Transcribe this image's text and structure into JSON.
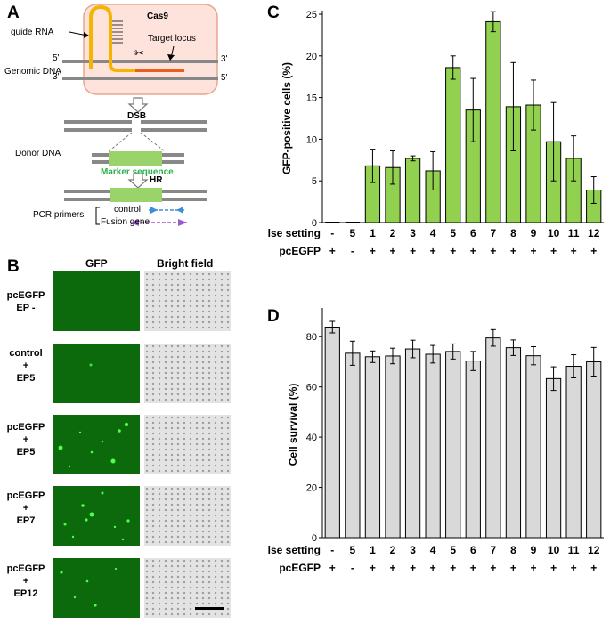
{
  "panel_letters": {
    "a": "A",
    "b": "B",
    "c": "C",
    "d": "D"
  },
  "panel_a": {
    "cas9": "Cas9",
    "guide_rna": "guide RNA",
    "target_locus": "Target locus",
    "genomic_dna": "Genomic DNA",
    "five_prime": "5'",
    "three_prime": "3'",
    "dsb": "DSB",
    "donor_dna": "Donor DNA",
    "marker_sequence": "Marker sequence",
    "hr": "HR",
    "pcr_primers": "PCR primers",
    "control": "control",
    "fusion_gene": "Fusion gene",
    "colors": {
      "cas9_fill": "#fde3dc",
      "cas9_border": "#e8a58c",
      "guide": "#f5b400",
      "target": "#e8601c",
      "marker": "#9ad36a",
      "marker_text": "#2bb24c",
      "control_arrow": "#3a8fd9",
      "fusion_arrow": "#9b59d0"
    }
  },
  "panel_b": {
    "col_gfp": "GFP",
    "col_bright": "Bright field",
    "rows": [
      {
        "line1": "pcEGFP",
        "line2": "EP -",
        "line3": ""
      },
      {
        "line1": "control",
        "line2": "+",
        "line3": "EP5"
      },
      {
        "line1": "pcEGFP",
        "line2": "+",
        "line3": "EP5"
      },
      {
        "line1": "pcEGFP",
        "line2": "+",
        "line3": "EP7"
      },
      {
        "line1": "pcEGFP",
        "line2": "+",
        "line3": "EP12"
      }
    ]
  },
  "chart_data": [
    {
      "type": "bar",
      "panel": "C",
      "title": "",
      "ylabel": "GFP-positive cells (%)",
      "ylim": [
        0,
        25
      ],
      "yticks": [
        0,
        5,
        10,
        15,
        20,
        25
      ],
      "row_label_pulse": "Pulse setting",
      "row_label_plasmid": "pcEGFP",
      "categories": [
        "-",
        "5",
        "1",
        "2",
        "3",
        "4",
        "5",
        "6",
        "7",
        "8",
        "9",
        "10",
        "11",
        "12"
      ],
      "pcegfp": [
        "+",
        "-",
        "+",
        "+",
        "+",
        "+",
        "+",
        "+",
        "+",
        "+",
        "+",
        "+",
        "+",
        "+"
      ],
      "values": [
        0,
        0,
        6.8,
        6.6,
        7.7,
        6.2,
        18.6,
        13.5,
        24.1,
        13.9,
        14.1,
        9.7,
        7.7,
        3.9
      ],
      "errors": [
        0,
        0,
        2.0,
        2.0,
        0.3,
        2.3,
        1.4,
        3.8,
        1.2,
        5.3,
        3.0,
        4.7,
        2.7,
        1.6
      ],
      "bar_color": "#92d050"
    },
    {
      "type": "bar",
      "panel": "D",
      "title": "",
      "ylabel": "Cell survival (%)",
      "ylim": [
        0,
        90
      ],
      "yticks": [
        0,
        20,
        40,
        60,
        80
      ],
      "row_label_pulse": "Pulse setting",
      "row_label_plasmid": "pcEGFP",
      "categories": [
        "-",
        "5",
        "1",
        "2",
        "3",
        "4",
        "5",
        "6",
        "7",
        "8",
        "9",
        "10",
        "11",
        "12"
      ],
      "pcegfp": [
        "+",
        "-",
        "+",
        "+",
        "+",
        "+",
        "+",
        "+",
        "+",
        "+",
        "+",
        "+",
        "+",
        "+"
      ],
      "values": [
        83.8,
        73.4,
        72.0,
        72.3,
        75.1,
        73.0,
        74.1,
        70.3,
        79.5,
        75.6,
        72.4,
        63.3,
        68.2,
        70.0
      ],
      "errors": [
        2.3,
        4.8,
        2.3,
        3.1,
        3.5,
        3.5,
        3.0,
        3.8,
        3.3,
        3.1,
        3.6,
        4.7,
        4.6,
        5.7
      ],
      "bar_color": "#d9d9d9"
    }
  ]
}
